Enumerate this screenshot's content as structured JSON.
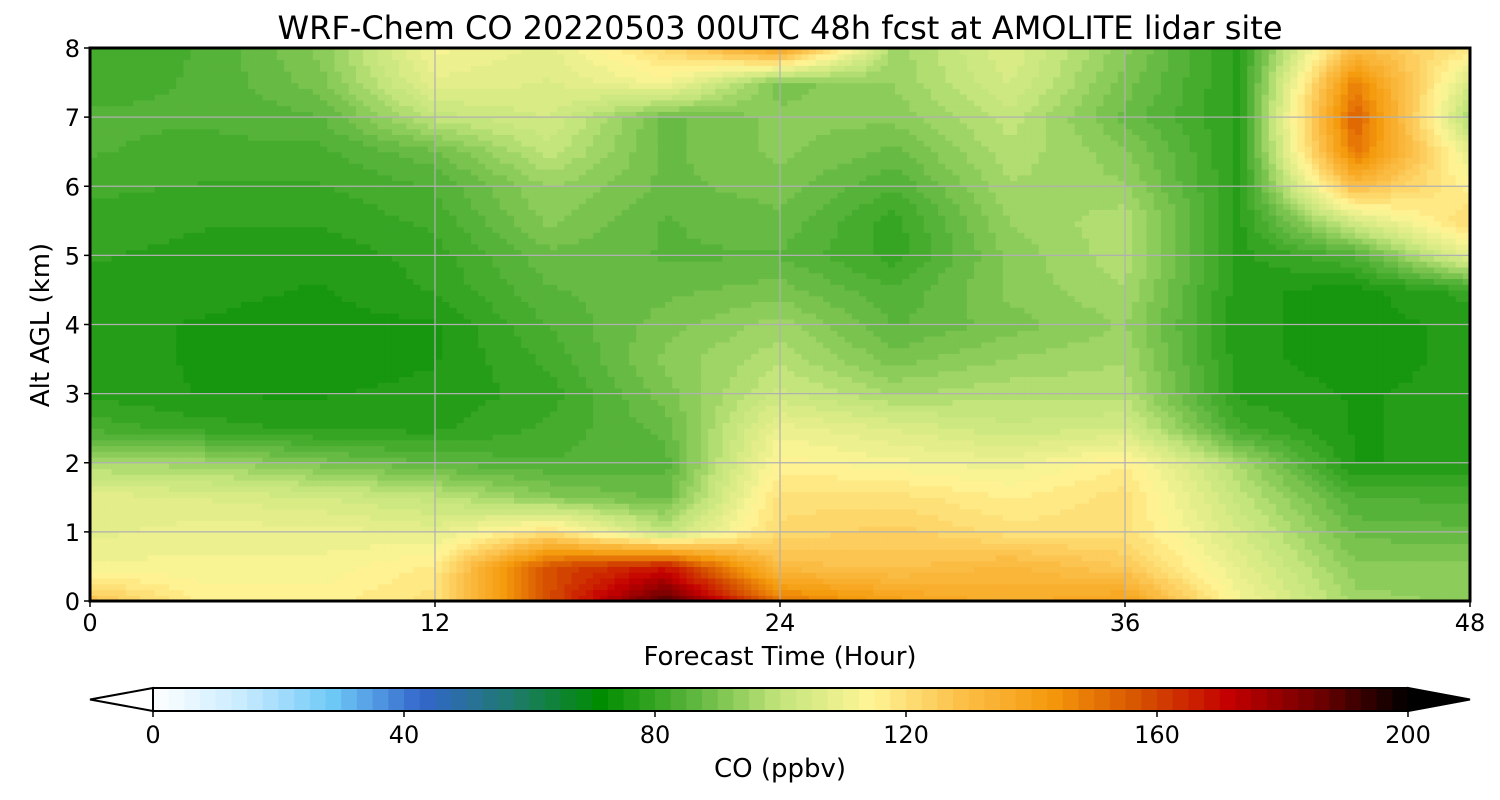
{
  "chart_data": {
    "type": "heatmap",
    "title": "WRF-Chem CO  20220503 00UTC 48h fcst at AMOLITE lidar site",
    "xlabel": "Forecast Time (Hour)",
    "ylabel": "Alt AGL (km)",
    "xlim": [
      0,
      48
    ],
    "ylim": [
      0,
      8
    ],
    "x_ticks": [
      0,
      12,
      24,
      36,
      48
    ],
    "y_ticks": [
      0,
      1,
      2,
      3,
      4,
      5,
      6,
      7,
      8
    ],
    "grid": true,
    "x": [
      0,
      4,
      8,
      12,
      16,
      20,
      24,
      28,
      32,
      36,
      40,
      44,
      48
    ],
    "y": [
      0,
      0.5,
      1,
      1.5,
      2,
      2.5,
      3,
      3.5,
      4,
      4.5,
      5,
      5.5,
      6,
      6.5,
      7,
      7.5,
      8
    ],
    "z": [
      [
        128,
        115,
        115,
        120,
        158,
        190,
        150,
        140,
        135,
        140,
        112,
        95,
        93
      ],
      [
        112,
        112,
        112,
        117,
        158,
        168,
        130,
        128,
        132,
        126,
        108,
        92,
        92
      ],
      [
        108,
        110,
        110,
        108,
        120,
        100,
        122,
        125,
        120,
        120,
        104,
        88,
        87
      ],
      [
        108,
        106,
        104,
        100,
        92,
        88,
        120,
        120,
        116,
        120,
        100,
        84,
        83
      ],
      [
        96,
        95,
        90,
        86,
        84,
        85,
        115,
        112,
        110,
        116,
        96,
        76,
        77
      ],
      [
        83,
        80,
        78,
        78,
        82,
        87,
        110,
        106,
        102,
        104,
        82,
        76,
        77
      ],
      [
        78,
        76,
        76,
        77,
        80,
        90,
        102,
        96,
        98,
        98,
        78,
        76,
        77
      ],
      [
        77,
        76,
        75,
        76,
        82,
        92,
        98,
        90,
        94,
        96,
        77,
        75,
        77
      ],
      [
        77,
        76,
        75,
        76,
        84,
        90,
        95,
        86,
        90,
        94,
        77,
        75,
        77
      ],
      [
        78,
        77,
        76,
        79,
        86,
        88,
        90,
        84,
        92,
        96,
        77,
        75,
        80
      ],
      [
        79,
        78,
        77,
        80,
        88,
        86,
        86,
        80,
        92,
        98,
        78,
        84,
        108
      ],
      [
        80,
        79,
        79,
        82,
        92,
        86,
        88,
        80,
        94,
        98,
        78,
        104,
        122
      ],
      [
        82,
        81,
        81,
        84,
        94,
        88,
        90,
        84,
        96,
        94,
        78,
        130,
        115
      ],
      [
        84,
        83,
        83,
        88,
        100,
        88,
        92,
        88,
        98,
        92,
        78,
        150,
        108
      ],
      [
        84,
        84,
        86,
        100,
        104,
        88,
        92,
        92,
        100,
        88,
        78,
        155,
        96
      ],
      [
        83,
        84,
        90,
        108,
        106,
        112,
        90,
        94,
        104,
        90,
        78,
        148,
        104
      ],
      [
        82,
        84,
        92,
        112,
        108,
        122,
        140,
        95,
        106,
        92,
        78,
        130,
        118
      ]
    ],
    "colorbar": {
      "label": "CO  (ppbv)",
      "min": 0,
      "max": 200,
      "ticks": [
        0,
        40,
        80,
        120,
        160,
        200
      ],
      "extend": "both",
      "colors": [
        "#ffffff",
        "#c8ebff",
        "#6fc9f7",
        "#3366cc",
        "#1e7a6e",
        "#008c00",
        "#5ab53c",
        "#c4e57c",
        "#fff596",
        "#fcc04a",
        "#f59a0c",
        "#d65200",
        "#c40000",
        "#6e0000",
        "#000000"
      ]
    }
  }
}
